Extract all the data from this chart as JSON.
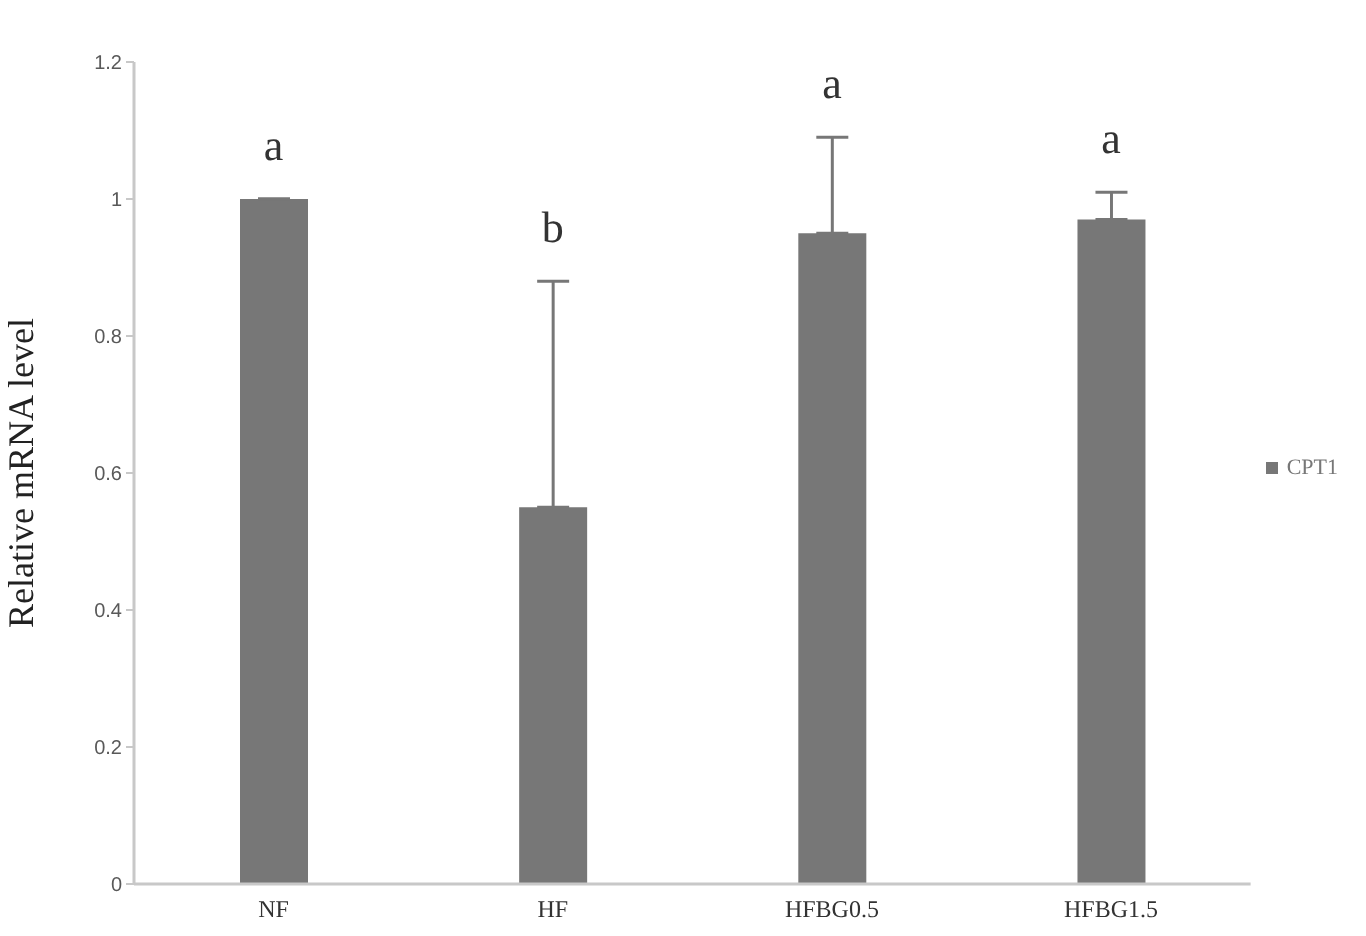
{
  "chart_data": {
    "type": "bar",
    "ylabel": "Relative mRNA level",
    "categories": [
      "NF",
      "HF",
      "HFBG0.5",
      "HFBG1.5"
    ],
    "series": [
      {
        "name": "CPT1",
        "color": "#777777",
        "values": [
          1,
          0.55,
          0.95,
          0.97
        ],
        "errors": [
          [
            1,
            1
          ],
          [
            0.55,
            0.88
          ],
          [
            0.95,
            1.09
          ],
          [
            0.97,
            1.01
          ]
        ]
      }
    ],
    "ylim": [
      0,
      1.2
    ],
    "yticks": [
      0,
      0.2,
      0.4,
      0.6,
      0.8,
      1,
      1.2
    ],
    "legend": "right",
    "annotations": [
      {
        "text": "a",
        "x": "NF",
        "y": 1
      },
      {
        "text": "b",
        "x": "HF",
        "y": 0.88
      },
      {
        "text": "a",
        "x": "HFBG0.5",
        "y": 1.09
      },
      {
        "text": "a",
        "x": "HFBG1.5",
        "y": 1.01
      }
    ]
  }
}
